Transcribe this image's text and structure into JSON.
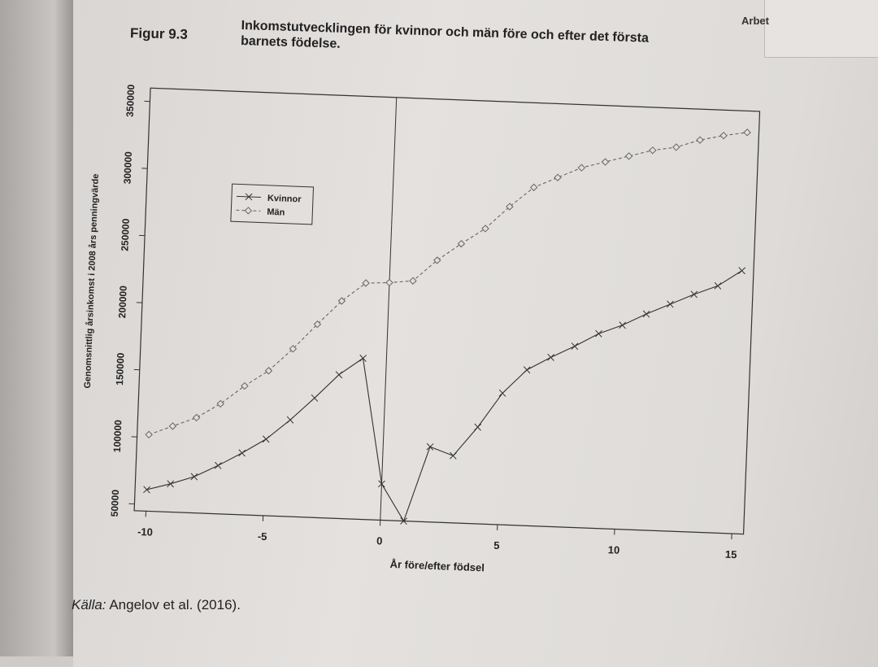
{
  "page": {
    "tab_label": "Arbet",
    "figure_number": "Figur 9.3",
    "figure_title": "Inkomstutvecklingen för kvinnor och män före och efter det första barnets födelse.",
    "source_label": "Källa:",
    "source_text": " Angelov et al. (2016)."
  },
  "chart_data": {
    "type": "line",
    "title": "",
    "xlabel": "År före/efter födsel",
    "ylabel": "Genomsnittlig årsinkomst i 2008 års penningvärde",
    "xlim": [
      -10.5,
      15.5
    ],
    "ylim": [
      45000,
      360000
    ],
    "xticks": [
      -10,
      -5,
      0,
      5,
      10,
      15
    ],
    "yticks": [
      50000,
      100000,
      150000,
      200000,
      250000,
      300000,
      350000
    ],
    "vertical_reference_line": 0,
    "grid": false,
    "legend_placement": "top-left",
    "x": [
      -10,
      -9,
      -8,
      -7,
      -6,
      -5,
      -4,
      -3,
      -2,
      -1,
      0,
      1,
      2,
      3,
      4,
      5,
      6,
      7,
      8,
      9,
      10,
      11,
      12,
      13,
      14,
      15
    ],
    "series": [
      {
        "name": "Kvinnor",
        "style": "solid",
        "marker": "x",
        "color": "#333333",
        "values": [
          61000,
          66000,
          72000,
          81000,
          91000,
          102000,
          117000,
          134000,
          152000,
          165000,
          72000,
          45000,
          101000,
          95000,
          117000,
          143000,
          161000,
          171000,
          180000,
          190000,
          197000,
          206000,
          214000,
          222000,
          229000,
          241000
        ]
      },
      {
        "name": "Män",
        "style": "dashed",
        "marker": "diamond",
        "color": "#666666",
        "values": [
          102000,
          109000,
          116000,
          127000,
          141000,
          153000,
          170000,
          189000,
          207000,
          221000,
          222000,
          224000,
          240000,
          253000,
          265000,
          282000,
          297000,
          305000,
          313000,
          318000,
          323000,
          328000,
          331000,
          337000,
          341000,
          344000
        ]
      }
    ]
  }
}
